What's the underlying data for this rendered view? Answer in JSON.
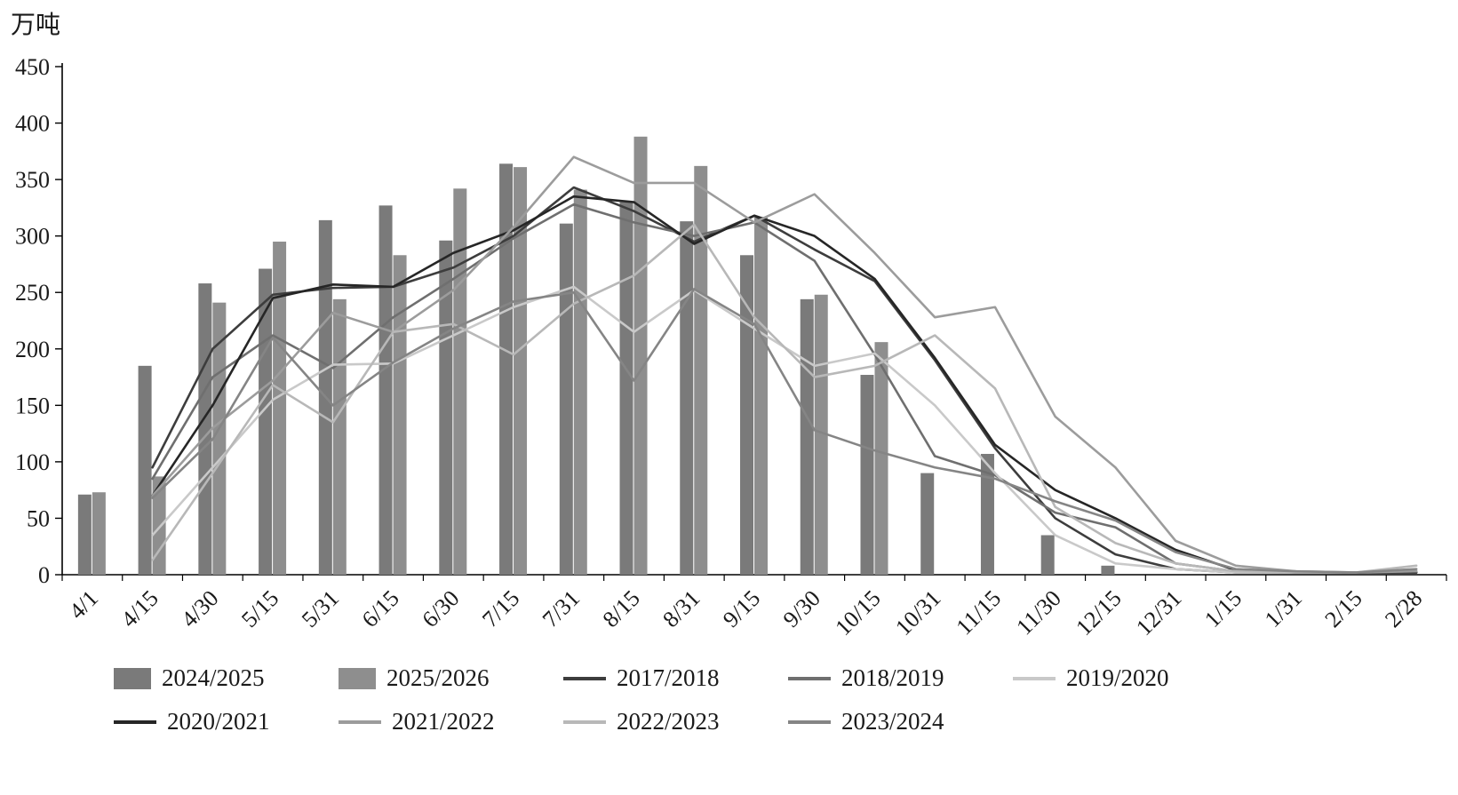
{
  "title": {
    "unit": "万吨"
  },
  "chart_data": {
    "type": "bar+line",
    "title": "",
    "xlabel": "",
    "ylabel": "万吨",
    "legend_position": "bottom",
    "grid": false,
    "categories": [
      "4/1",
      "4/15",
      "4/30",
      "5/15",
      "5/31",
      "6/15",
      "6/30",
      "7/15",
      "7/31",
      "8/15",
      "8/31",
      "9/15",
      "9/30",
      "10/15",
      "10/31",
      "11/15",
      "11/30",
      "12/15",
      "12/31",
      "1/15",
      "1/31",
      "2/15",
      "2/28"
    ],
    "y_axis": {
      "min": 0,
      "max": 450,
      "step": 50,
      "ticks": [
        0,
        50,
        100,
        150,
        200,
        250,
        300,
        350,
        400,
        450
      ]
    },
    "bar_series": [
      {
        "name": "2024/2025",
        "color": "#7a7a7a",
        "values": [
          71,
          185,
          258,
          271,
          314,
          327,
          296,
          364,
          311,
          330,
          313,
          283,
          244,
          177,
          90,
          107,
          35,
          8,
          null,
          null,
          null,
          null,
          null
        ]
      },
      {
        "name": "2025/2026",
        "color": "#8e8e8e",
        "values": [
          73,
          87,
          241,
          295,
          244,
          283,
          342,
          361,
          341,
          388,
          362,
          317,
          248,
          206,
          null,
          null,
          null,
          null,
          null,
          null,
          null,
          null,
          null
        ]
      }
    ],
    "line_series": [
      {
        "name": "2017/2018",
        "color": "#3d3d3d",
        "values": [
          null,
          95,
          200,
          248,
          254,
          255,
          272,
          300,
          343,
          322,
          295,
          318,
          288,
          260,
          190,
          112,
          50,
          18,
          5,
          2,
          2,
          2,
          2
        ]
      },
      {
        "name": "2018/2019",
        "color": "#6f6f6f",
        "values": [
          null,
          85,
          175,
          212,
          183,
          228,
          262,
          298,
          328,
          312,
          300,
          312,
          278,
          195,
          105,
          88,
          55,
          42,
          10,
          3,
          2,
          2,
          3
        ]
      },
      {
        "name": "2019/2020",
        "color": "#c9c9c9",
        "values": [
          null,
          35,
          95,
          155,
          186,
          187,
          212,
          237,
          255,
          215,
          252,
          218,
          185,
          196,
          150,
          90,
          35,
          10,
          5,
          2,
          2,
          2,
          5
        ]
      },
      {
        "name": "2020/2021",
        "color": "#262626",
        "values": [
          null,
          70,
          150,
          245,
          257,
          255,
          285,
          305,
          335,
          330,
          293,
          318,
          300,
          262,
          192,
          115,
          75,
          50,
          22,
          4,
          2,
          2,
          2
        ]
      },
      {
        "name": "2021/2022",
        "color": "#9c9c9c",
        "values": [
          null,
          70,
          130,
          172,
          232,
          215,
          252,
          308,
          370,
          347,
          347,
          312,
          337,
          285,
          228,
          237,
          140,
          95,
          30,
          8,
          3,
          2,
          3
        ]
      },
      {
        "name": "2022/2023",
        "color": "#b8b8b8",
        "values": [
          null,
          13,
          90,
          168,
          135,
          215,
          222,
          195,
          240,
          265,
          310,
          228,
          175,
          185,
          212,
          165,
          60,
          28,
          10,
          3,
          2,
          2,
          8
        ]
      },
      {
        "name": "2023/2024",
        "color": "#858585",
        "values": [
          null,
          68,
          120,
          210,
          150,
          188,
          218,
          242,
          250,
          172,
          253,
          222,
          128,
          110,
          95,
          85,
          65,
          48,
          20,
          5,
          3,
          2,
          5
        ]
      }
    ],
    "legend_rows": [
      [
        "2024/2025",
        "2025/2026",
        "2017/2018",
        "2018/2019",
        "2019/2020"
      ],
      [
        "2020/2021",
        "2021/2022",
        "2022/2023",
        "2023/2024"
      ]
    ]
  }
}
